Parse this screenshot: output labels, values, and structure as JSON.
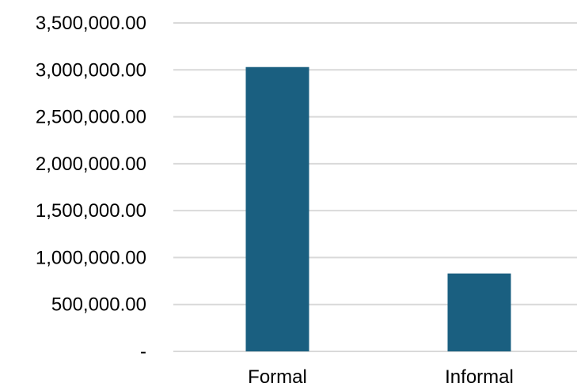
{
  "chart_data": {
    "type": "bar",
    "title": "",
    "xlabel": "",
    "ylabel": "",
    "categories": [
      "Formal",
      "Informal"
    ],
    "values": [
      3030000,
      830000
    ],
    "ylim": [
      0,
      3500000
    ],
    "yticks": [
      0,
      500000,
      1000000,
      1500000,
      2000000,
      2500000,
      3000000,
      3500000
    ],
    "ytick_labels": [
      "-",
      "500,000.00",
      "1,000,000.00",
      "1,500,000.00",
      "2,000,000.00",
      "2,500,000.00",
      "3,000,000.00",
      "3,500,000.00"
    ],
    "grid": true,
    "legend": "none",
    "bar_color": "#1a5f80",
    "grid_color": "#d9d9d9"
  }
}
